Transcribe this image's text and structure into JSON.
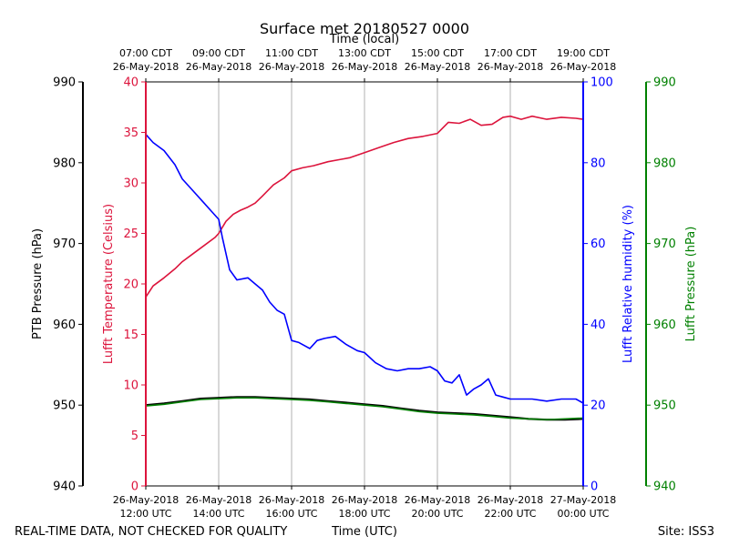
{
  "chart_data": {
    "type": "line",
    "title": "Surface met 20180527 0000",
    "top_xlabel": "Time (local)",
    "xlabel": "Time (UTC)",
    "footer_left": "REAL-TIME DATA, NOT CHECKED FOR QUALITY",
    "footer_right": "Site: ISS3",
    "x_range_hours": [
      12,
      24
    ],
    "x_ticks_utc": [
      {
        "hour": 12,
        "line1": "26-May-2018",
        "line2": "12:00 UTC"
      },
      {
        "hour": 14,
        "line1": "26-May-2018",
        "line2": "14:00 UTC"
      },
      {
        "hour": 16,
        "line1": "26-May-2018",
        "line2": "16:00 UTC"
      },
      {
        "hour": 18,
        "line1": "26-May-2018",
        "line2": "18:00 UTC"
      },
      {
        "hour": 20,
        "line1": "26-May-2018",
        "line2": "20:00 UTC"
      },
      {
        "hour": 22,
        "line1": "26-May-2018",
        "line2": "22:00 UTC"
      },
      {
        "hour": 24,
        "line1": "27-May-2018",
        "line2": "00:00 UTC"
      }
    ],
    "x_ticks_local": [
      {
        "hour": 12,
        "line1": "07:00 CDT",
        "line2": "26-May-2018"
      },
      {
        "hour": 14,
        "line1": "09:00 CDT",
        "line2": "26-May-2018"
      },
      {
        "hour": 16,
        "line1": "11:00 CDT",
        "line2": "26-May-2018"
      },
      {
        "hour": 18,
        "line1": "13:00 CDT",
        "line2": "26-May-2018"
      },
      {
        "hour": 20,
        "line1": "15:00 CDT",
        "line2": "26-May-2018"
      },
      {
        "hour": 22,
        "line1": "17:00 CDT",
        "line2": "26-May-2018"
      },
      {
        "hour": 24,
        "line1": "19:00 CDT",
        "line2": "26-May-2018"
      }
    ],
    "axes": {
      "ptb": {
        "label": "PTB Pressure (hPa)",
        "range": [
          940,
          990
        ],
        "ticks": [
          940,
          950,
          960,
          970,
          980,
          990
        ],
        "color": "#000000"
      },
      "temp": {
        "label": "Lufft Temperature (Celsius)",
        "range": [
          0,
          40
        ],
        "ticks": [
          0,
          5,
          10,
          15,
          20,
          25,
          30,
          35,
          40
        ],
        "color": "#dc143c"
      },
      "rh": {
        "label": "Lufft Relative humidity (%)",
        "range": [
          0,
          100
        ],
        "ticks": [
          0,
          20,
          40,
          60,
          80,
          100
        ],
        "color": "#0000ff"
      },
      "lufft_p": {
        "label": "Lufft Pressure (hPa)",
        "range": [
          940,
          990
        ],
        "ticks": [
          940,
          950,
          960,
          970,
          980,
          990
        ],
        "color": "#008000"
      }
    },
    "series": [
      {
        "name": "Lufft Temperature",
        "axis": "temp",
        "color": "#dc143c",
        "points": [
          [
            12.0,
            18.7
          ],
          [
            12.2,
            19.8
          ],
          [
            12.5,
            20.6
          ],
          [
            12.8,
            21.5
          ],
          [
            13.0,
            22.2
          ],
          [
            13.3,
            23.0
          ],
          [
            13.6,
            23.8
          ],
          [
            13.9,
            24.6
          ],
          [
            14.0,
            25.0
          ],
          [
            14.2,
            26.2
          ],
          [
            14.4,
            26.9
          ],
          [
            14.6,
            27.3
          ],
          [
            14.8,
            27.6
          ],
          [
            15.0,
            28.0
          ],
          [
            15.2,
            28.7
          ],
          [
            15.5,
            29.8
          ],
          [
            15.8,
            30.5
          ],
          [
            16.0,
            31.2
          ],
          [
            16.3,
            31.5
          ],
          [
            16.6,
            31.7
          ],
          [
            17.0,
            32.1
          ],
          [
            17.3,
            32.3
          ],
          [
            17.6,
            32.5
          ],
          [
            18.0,
            33.0
          ],
          [
            18.4,
            33.5
          ],
          [
            18.8,
            34.0
          ],
          [
            19.2,
            34.4
          ],
          [
            19.6,
            34.6
          ],
          [
            20.0,
            34.9
          ],
          [
            20.3,
            36.0
          ],
          [
            20.6,
            35.9
          ],
          [
            20.9,
            36.3
          ],
          [
            21.2,
            35.7
          ],
          [
            21.5,
            35.8
          ],
          [
            21.8,
            36.5
          ],
          [
            22.0,
            36.6
          ],
          [
            22.3,
            36.3
          ],
          [
            22.6,
            36.6
          ],
          [
            23.0,
            36.3
          ],
          [
            23.4,
            36.5
          ],
          [
            23.8,
            36.4
          ],
          [
            24.0,
            36.3
          ]
        ]
      },
      {
        "name": "Lufft Relative humidity",
        "axis": "rh",
        "color": "#0000ff",
        "points": [
          [
            12.0,
            87.0
          ],
          [
            12.2,
            85.0
          ],
          [
            12.5,
            83.0
          ],
          [
            12.8,
            79.5
          ],
          [
            13.0,
            76.0
          ],
          [
            13.3,
            73.0
          ],
          [
            13.6,
            70.0
          ],
          [
            13.8,
            68.0
          ],
          [
            14.0,
            66.0
          ],
          [
            14.1,
            61.5
          ],
          [
            14.3,
            53.5
          ],
          [
            14.5,
            51.0
          ],
          [
            14.8,
            51.5
          ],
          [
            15.0,
            50.0
          ],
          [
            15.2,
            48.5
          ],
          [
            15.4,
            45.5
          ],
          [
            15.6,
            43.5
          ],
          [
            15.8,
            42.5
          ],
          [
            16.0,
            36.0
          ],
          [
            16.2,
            35.5
          ],
          [
            16.5,
            34.0
          ],
          [
            16.7,
            36.0
          ],
          [
            16.9,
            36.5
          ],
          [
            17.2,
            37.0
          ],
          [
            17.5,
            35.0
          ],
          [
            17.8,
            33.5
          ],
          [
            18.0,
            33.0
          ],
          [
            18.3,
            30.5
          ],
          [
            18.6,
            29.0
          ],
          [
            18.9,
            28.5
          ],
          [
            19.2,
            29.0
          ],
          [
            19.5,
            29.0
          ],
          [
            19.8,
            29.5
          ],
          [
            20.0,
            28.5
          ],
          [
            20.2,
            26.0
          ],
          [
            20.4,
            25.5
          ],
          [
            20.6,
            27.5
          ],
          [
            20.8,
            22.5
          ],
          [
            21.0,
            24.0
          ],
          [
            21.2,
            25.0
          ],
          [
            21.4,
            26.5
          ],
          [
            21.6,
            22.5
          ],
          [
            21.8,
            22.0
          ],
          [
            22.0,
            21.5
          ],
          [
            22.3,
            21.5
          ],
          [
            22.6,
            21.5
          ],
          [
            23.0,
            21.0
          ],
          [
            23.4,
            21.5
          ],
          [
            23.8,
            21.5
          ],
          [
            24.0,
            20.5
          ]
        ]
      },
      {
        "name": "PTB Pressure",
        "axis": "ptb",
        "color": "#000000",
        "points": [
          [
            12.0,
            950.0
          ],
          [
            12.5,
            950.2
          ],
          [
            13.0,
            950.5
          ],
          [
            13.5,
            950.8
          ],
          [
            14.0,
            950.9
          ],
          [
            14.5,
            951.0
          ],
          [
            15.0,
            951.0
          ],
          [
            15.5,
            950.9
          ],
          [
            16.0,
            950.8
          ],
          [
            16.5,
            950.7
          ],
          [
            17.0,
            950.5
          ],
          [
            17.5,
            950.3
          ],
          [
            18.0,
            950.1
          ],
          [
            18.5,
            949.9
          ],
          [
            19.0,
            949.6
          ],
          [
            19.5,
            949.3
          ],
          [
            20.0,
            949.1
          ],
          [
            20.5,
            949.0
          ],
          [
            21.0,
            948.9
          ],
          [
            21.5,
            948.7
          ],
          [
            22.0,
            948.5
          ],
          [
            22.5,
            948.3
          ],
          [
            23.0,
            948.2
          ],
          [
            23.5,
            948.2
          ],
          [
            24.0,
            948.3
          ]
        ]
      },
      {
        "name": "Lufft Pressure",
        "axis": "lufft_p",
        "color": "#008000",
        "points": [
          [
            12.0,
            949.9
          ],
          [
            12.5,
            950.1
          ],
          [
            13.0,
            950.4
          ],
          [
            13.5,
            950.7
          ],
          [
            14.0,
            950.8
          ],
          [
            14.5,
            950.9
          ],
          [
            15.0,
            950.9
          ],
          [
            15.5,
            950.8
          ],
          [
            16.0,
            950.7
          ],
          [
            16.5,
            950.6
          ],
          [
            17.0,
            950.4
          ],
          [
            17.5,
            950.2
          ],
          [
            18.0,
            950.0
          ],
          [
            18.5,
            949.8
          ],
          [
            19.0,
            949.5
          ],
          [
            19.5,
            949.2
          ],
          [
            20.0,
            949.0
          ],
          [
            20.5,
            948.9
          ],
          [
            21.0,
            948.8
          ],
          [
            21.5,
            948.6
          ],
          [
            22.0,
            948.4
          ],
          [
            22.5,
            948.3
          ],
          [
            23.0,
            948.2
          ],
          [
            23.5,
            948.3
          ],
          [
            24.0,
            948.4
          ]
        ]
      }
    ]
  }
}
